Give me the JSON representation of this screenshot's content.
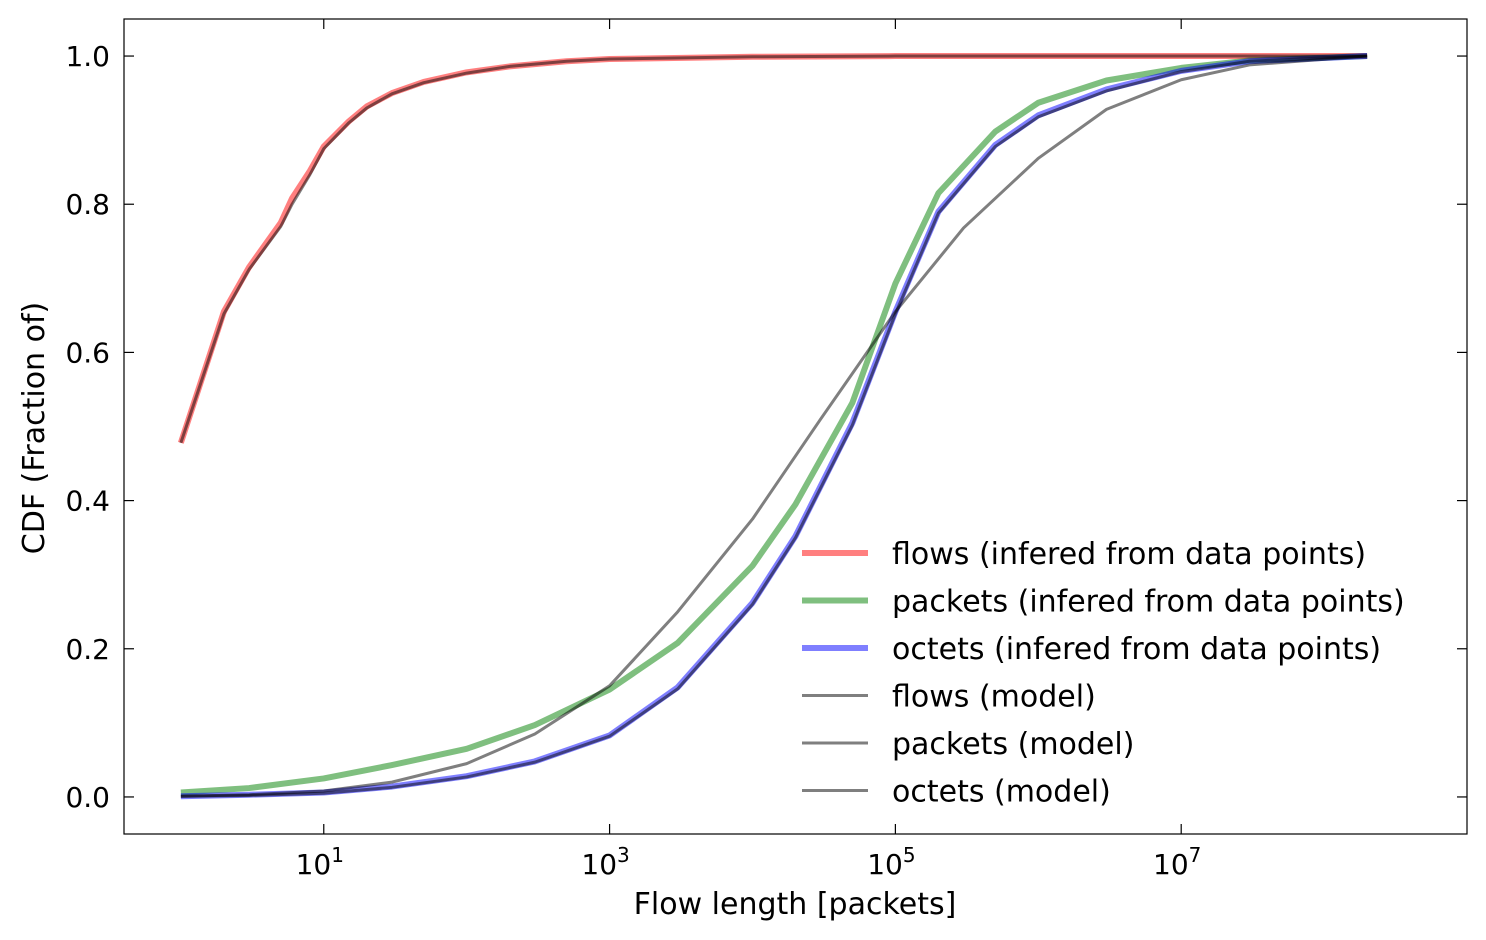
{
  "chart_data": {
    "type": "line",
    "xscale": "log",
    "xlabel": "Flow length [packets]",
    "ylabel": "CDF (Fraction of)",
    "xlim": [
      0.4,
      1000000000
    ],
    "ylim": [
      -0.05,
      1.05
    ],
    "x_ticks": [
      {
        "value": 10,
        "base": "10",
        "exp": "1"
      },
      {
        "value": 1000,
        "base": "10",
        "exp": "3"
      },
      {
        "value": 100000,
        "base": "10",
        "exp": "5"
      },
      {
        "value": 10000000,
        "base": "10",
        "exp": "7"
      }
    ],
    "y_ticks": [
      {
        "value": 0.0,
        "label": "0.0"
      },
      {
        "value": 0.2,
        "label": "0.2"
      },
      {
        "value": 0.4,
        "label": "0.4"
      },
      {
        "value": 0.6,
        "label": "0.6"
      },
      {
        "value": 0.8,
        "label": "0.8"
      },
      {
        "value": 1.0,
        "label": "1.0"
      }
    ],
    "grid": false,
    "legend_position": "lower-right",
    "series": [
      {
        "name": "flows (infered from data points)",
        "color": "#ff0000",
        "opacity": 0.5,
        "kind": "data",
        "x": [
          1,
          2,
          3,
          5,
          6,
          8,
          10,
          15,
          20,
          30,
          50,
          100,
          200,
          500,
          1000,
          10000,
          100000,
          1000000,
          10000000,
          200000000
        ],
        "y": [
          0.478,
          0.655,
          0.715,
          0.775,
          0.808,
          0.845,
          0.878,
          0.912,
          0.932,
          0.95,
          0.965,
          0.978,
          0.986,
          0.993,
          0.996,
          0.999,
          1.0,
          1.0,
          1.0,
          1.0
        ]
      },
      {
        "name": "packets (infered from data points)",
        "color": "#008000",
        "opacity": 0.5,
        "kind": "data",
        "x": [
          1,
          3,
          10,
          30,
          100,
          300,
          1000,
          3000,
          10000,
          20000,
          50000,
          100000,
          200000,
          500000,
          1000000,
          3000000,
          10000000,
          30000000,
          200000000
        ],
        "y": [
          0.006,
          0.012,
          0.025,
          0.043,
          0.065,
          0.097,
          0.145,
          0.208,
          0.312,
          0.395,
          0.532,
          0.693,
          0.815,
          0.898,
          0.937,
          0.967,
          0.984,
          0.994,
          1.0
        ]
      },
      {
        "name": "octets (infered from data points)",
        "color": "#0000ff",
        "opacity": 0.5,
        "kind": "data",
        "x": [
          1,
          3,
          10,
          30,
          100,
          300,
          1000,
          3000,
          10000,
          20000,
          50000,
          100000,
          200000,
          500000,
          1000000,
          3000000,
          10000000,
          30000000,
          200000000
        ],
        "y": [
          0.001,
          0.003,
          0.006,
          0.014,
          0.028,
          0.048,
          0.083,
          0.148,
          0.262,
          0.352,
          0.505,
          0.655,
          0.79,
          0.88,
          0.92,
          0.955,
          0.98,
          0.993,
          1.0
        ]
      },
      {
        "name": "flows (model)",
        "color": "#000000",
        "opacity": 0.5,
        "kind": "model",
        "x": [
          1,
          2,
          3,
          5,
          6,
          8,
          10,
          15,
          20,
          30,
          50,
          100,
          200,
          500,
          1000,
          10000,
          100000,
          1000000,
          10000000,
          200000000
        ],
        "y": [
          0.478,
          0.652,
          0.712,
          0.77,
          0.8,
          0.84,
          0.875,
          0.91,
          0.93,
          0.949,
          0.964,
          0.977,
          0.986,
          0.993,
          0.996,
          0.999,
          1.0,
          1.0,
          1.0,
          1.0
        ]
      },
      {
        "name": "packets (model)",
        "color": "#000000",
        "opacity": 0.5,
        "kind": "model",
        "x": [
          1,
          3,
          10,
          30,
          100,
          300,
          1000,
          3000,
          10000,
          30000,
          100000,
          300000,
          1000000,
          3000000,
          10000000,
          30000000,
          200000000
        ],
        "y": [
          0.001,
          0.003,
          0.008,
          0.02,
          0.045,
          0.085,
          0.15,
          0.25,
          0.375,
          0.51,
          0.655,
          0.768,
          0.862,
          0.928,
          0.968,
          0.988,
          1.0
        ]
      },
      {
        "name": "octets (model)",
        "color": "#000000",
        "opacity": 0.5,
        "kind": "model",
        "x": [
          1,
          3,
          10,
          30,
          100,
          300,
          1000,
          3000,
          10000,
          20000,
          50000,
          100000,
          200000,
          500000,
          1000000,
          3000000,
          10000000,
          30000000,
          200000000
        ],
        "y": [
          0.001,
          0.002,
          0.005,
          0.013,
          0.027,
          0.047,
          0.082,
          0.146,
          0.26,
          0.35,
          0.502,
          0.652,
          0.788,
          0.878,
          0.918,
          0.953,
          0.979,
          0.993,
          1.0
        ]
      }
    ]
  }
}
